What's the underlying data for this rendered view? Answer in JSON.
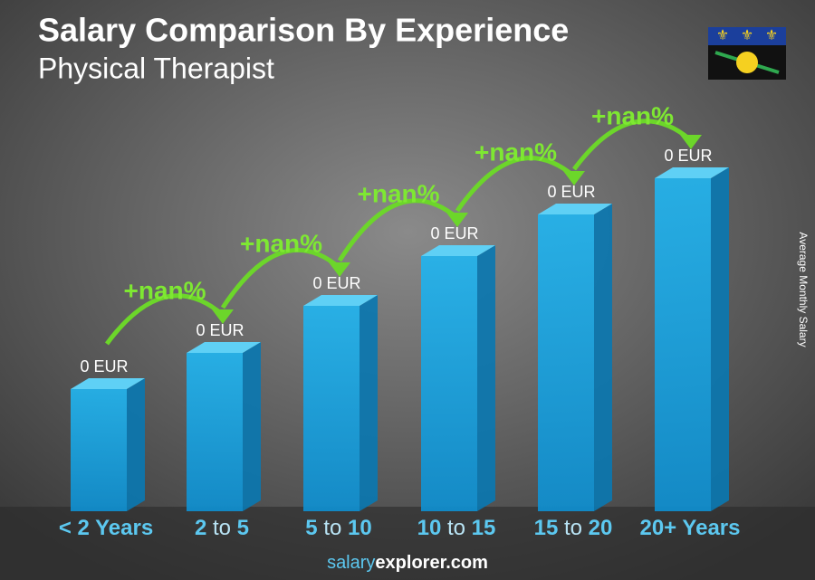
{
  "header": {
    "title": "Salary Comparison By Experience",
    "subtitle": "Physical Therapist"
  },
  "axis_label": "Average Monthly Salary",
  "bars": [
    {
      "category": [
        "< 2 Years"
      ],
      "label": "0 EUR"
    },
    {
      "category": [
        "2",
        "to",
        "5"
      ],
      "label": "0 EUR"
    },
    {
      "category": [
        "5",
        "to",
        "10"
      ],
      "label": "0 EUR"
    },
    {
      "category": [
        "10",
        "to",
        "15"
      ],
      "label": "0 EUR"
    },
    {
      "category": [
        "15",
        "to",
        "20"
      ],
      "label": "0 EUR"
    },
    {
      "category": [
        "20+ Years"
      ],
      "label": "0 EUR"
    }
  ],
  "changes": [
    "+nan%",
    "+nan%",
    "+nan%",
    "+nan%",
    "+nan%"
  ],
  "footer": [
    "salary",
    "explorer.com"
  ]
}
